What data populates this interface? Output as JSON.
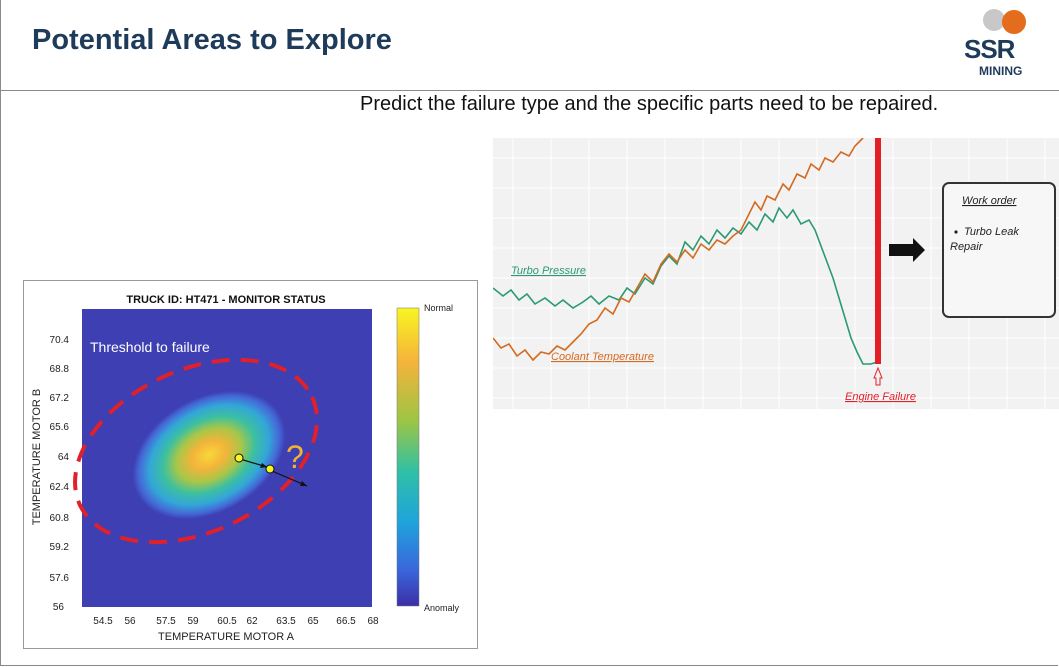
{
  "slide": {
    "title": "Potential Areas to Explore",
    "subtitle": "Predict the failure type and the specific parts need to be repaired."
  },
  "logo": {
    "text": "SSR",
    "subtext": "MINING",
    "colors": {
      "orange": "#e36c1d",
      "grey": "#bfbfbf",
      "navy": "#1f3b5a"
    }
  },
  "heatmap_panel": {
    "title": "TRUCK ID: HT471 - MONITOR STATUS",
    "xlabel": "TEMPERATURE MOTOR A",
    "ylabel": "TEMPERATURE MOTOR B",
    "x_ticks": [
      "54.5",
      "56",
      "57.5",
      "59",
      "60.5",
      "62",
      "63.5",
      "65",
      "66.5",
      "68"
    ],
    "y_ticks": [
      "70.4",
      "68.8",
      "67.2",
      "65.6",
      "64",
      "62.4",
      "60.8",
      "59.2",
      "57.6",
      "56"
    ],
    "colorbar_top": "Normal",
    "colorbar_bottom": "Anomaly",
    "threshold_label": "Threshold to failure",
    "question_mark": "?",
    "colors": {
      "background": "#3d3fb2",
      "threshold": "#e0202a",
      "question": "#f2b233"
    }
  },
  "trend_panel": {
    "turbo_label": "Turbo Pressure",
    "coolant_label": "Coolant Temperature",
    "failure_label": "Engine Failure",
    "work_order_title": "Work order",
    "work_order_item": "Turbo Leak Repair",
    "colors": {
      "turbo": "#2a9a72",
      "coolant": "#d46a1f",
      "failure": "#e21e26"
    }
  }
}
